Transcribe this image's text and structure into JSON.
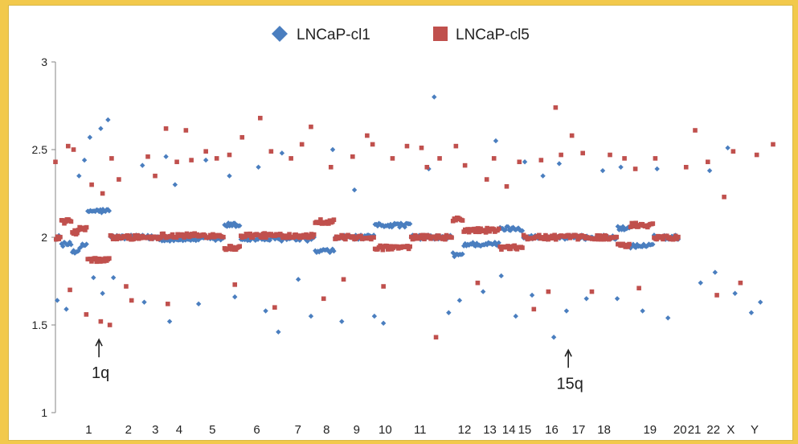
{
  "chart_data": {
    "type": "scatter",
    "title": "",
    "xlabel": "",
    "ylabel": "",
    "ylim": [
      1,
      3
    ],
    "yticks": [
      1,
      1.5,
      2,
      2.5,
      3
    ],
    "grid": false,
    "legend_position": "top-center",
    "colors": {
      "LNCaP-cl1": "#4a7ebf",
      "LNCaP-cl5": "#c0504d"
    },
    "x_tick_labels": [
      "1",
      "2",
      "3",
      "4",
      "5",
      "6",
      "7",
      "8",
      "9",
      "10",
      "11",
      "12",
      "13",
      "14",
      "15",
      "16",
      "17",
      "18",
      "19",
      "20",
      "21",
      "22",
      "X",
      "Y"
    ],
    "series": [
      {
        "name": "LNCaP-cl1",
        "marker": "diamond"
      },
      {
        "name": "LNCaP-cl5",
        "marker": "square"
      }
    ],
    "segments": [
      {
        "x": [
          0.0,
          0.3
        ],
        "cl1": 2.0,
        "cl5": 2.0
      },
      {
        "x": [
          0.3,
          0.9
        ],
        "cl1": 1.96,
        "cl5": 2.09
      },
      {
        "x": [
          0.9,
          1.3
        ],
        "cl1": 1.92,
        "cl5": 2.03
      },
      {
        "x": [
          1.3,
          1.75
        ],
        "cl1": 1.95,
        "cl5": 2.05
      },
      {
        "x": [
          1.75,
          3.0
        ],
        "cl1": 2.15,
        "cl5": 1.87
      },
      {
        "x": [
          3.0,
          5.7
        ],
        "cl1": 2.0,
        "cl5": 2.0
      },
      {
        "x": [
          5.7,
          9.3
        ],
        "cl1": 1.99,
        "cl5": 2.01
      },
      {
        "x": [
          9.3,
          10.2
        ],
        "cl1": 2.07,
        "cl5": 1.94
      },
      {
        "x": [
          10.2,
          12.3
        ],
        "cl1": 1.99,
        "cl5": 2.01
      },
      {
        "x": [
          12.3,
          14.3
        ],
        "cl1": 1.99,
        "cl5": 2.01
      },
      {
        "x": [
          14.3,
          15.4
        ],
        "cl1": 1.92,
        "cl5": 2.09
      },
      {
        "x": [
          15.4,
          17.6
        ],
        "cl1": 2.0,
        "cl5": 2.0
      },
      {
        "x": [
          17.6,
          19.6
        ],
        "cl1": 2.07,
        "cl5": 1.94
      },
      {
        "x": [
          19.6,
          21.9
        ],
        "cl1": 2.0,
        "cl5": 2.0
      },
      {
        "x": [
          21.9,
          22.5
        ],
        "cl1": 1.9,
        "cl5": 2.1
      },
      {
        "x": [
          22.5,
          24.5
        ],
        "cl1": 1.96,
        "cl5": 2.04
      },
      {
        "x": [
          24.5,
          25.8
        ],
        "cl1": 2.05,
        "cl5": 1.94
      },
      {
        "x": [
          25.8,
          31.0
        ],
        "cl1": 2.0,
        "cl5": 2.0
      },
      {
        "x": [
          31.0,
          31.7
        ],
        "cl1": 2.05,
        "cl5": 1.95
      },
      {
        "x": [
          31.7,
          33.0
        ],
        "cl1": 1.95,
        "cl5": 2.07
      },
      {
        "x": [
          33.0,
          34.4
        ],
        "cl1": 2.0,
        "cl5": 2.0
      }
    ],
    "outliers": {
      "LNCaP-cl1": [
        [
          1.3,
          2.35
        ],
        [
          1.6,
          2.44
        ],
        [
          1.9,
          2.57
        ],
        [
          2.5,
          2.62
        ],
        [
          2.9,
          2.67
        ],
        [
          0.1,
          1.64
        ],
        [
          0.6,
          1.59
        ],
        [
          2.1,
          1.77
        ],
        [
          2.6,
          1.68
        ],
        [
          3.2,
          1.77
        ],
        [
          4.8,
          2.41
        ],
        [
          4.9,
          1.63
        ],
        [
          6.1,
          2.46
        ],
        [
          6.3,
          1.52
        ],
        [
          6.6,
          2.3
        ],
        [
          7.9,
          1.62
        ],
        [
          8.3,
          2.44
        ],
        [
          9.6,
          2.35
        ],
        [
          9.9,
          1.66
        ],
        [
          11.2,
          2.4
        ],
        [
          11.6,
          1.58
        ],
        [
          12.3,
          1.46
        ],
        [
          12.5,
          2.48
        ],
        [
          13.4,
          1.76
        ],
        [
          14.1,
          1.55
        ],
        [
          15.3,
          2.5
        ],
        [
          15.8,
          1.52
        ],
        [
          16.5,
          2.27
        ],
        [
          17.6,
          1.55
        ],
        [
          18.1,
          1.51
        ],
        [
          20.6,
          2.39
        ],
        [
          20.9,
          2.8
        ],
        [
          21.7,
          1.57
        ],
        [
          22.3,
          1.64
        ],
        [
          23.6,
          1.69
        ],
        [
          24.3,
          2.55
        ],
        [
          24.6,
          1.78
        ],
        [
          25.4,
          1.55
        ],
        [
          25.9,
          2.43
        ],
        [
          26.3,
          1.67
        ],
        [
          26.9,
          2.35
        ],
        [
          27.5,
          1.43
        ],
        [
          27.8,
          2.42
        ],
        [
          28.2,
          1.58
        ],
        [
          29.3,
          1.65
        ],
        [
          30.2,
          2.38
        ],
        [
          31.0,
          1.65
        ],
        [
          31.2,
          2.4
        ],
        [
          32.4,
          1.58
        ],
        [
          33.2,
          2.39
        ],
        [
          33.8,
          1.54
        ],
        [
          35.6,
          1.74
        ],
        [
          36.1,
          2.38
        ],
        [
          36.4,
          1.8
        ],
        [
          37.1,
          2.51
        ],
        [
          37.5,
          1.68
        ],
        [
          38.4,
          1.57
        ],
        [
          38.9,
          1.63
        ]
      ],
      "LNCaP-cl5": [
        [
          0.0,
          2.43
        ],
        [
          0.7,
          2.52
        ],
        [
          1.0,
          2.5
        ],
        [
          0.8,
          1.7
        ],
        [
          1.7,
          1.56
        ],
        [
          2.0,
          2.3
        ],
        [
          2.6,
          2.25
        ],
        [
          3.1,
          2.45
        ],
        [
          3.5,
          2.33
        ],
        [
          2.5,
          1.52
        ],
        [
          3.0,
          1.5
        ],
        [
          3.9,
          1.72
        ],
        [
          4.2,
          1.64
        ],
        [
          5.1,
          2.46
        ],
        [
          5.5,
          2.35
        ],
        [
          6.1,
          2.62
        ],
        [
          6.2,
          1.62
        ],
        [
          6.7,
          2.43
        ],
        [
          7.2,
          2.61
        ],
        [
          7.5,
          2.44
        ],
        [
          8.3,
          2.49
        ],
        [
          8.9,
          2.45
        ],
        [
          9.6,
          2.47
        ],
        [
          9.9,
          1.73
        ],
        [
          10.3,
          2.57
        ],
        [
          11.3,
          2.68
        ],
        [
          11.9,
          2.49
        ],
        [
          12.1,
          1.6
        ],
        [
          13.0,
          2.45
        ],
        [
          13.6,
          2.53
        ],
        [
          14.1,
          2.63
        ],
        [
          14.8,
          1.65
        ],
        [
          15.2,
          2.4
        ],
        [
          15.9,
          1.76
        ],
        [
          16.4,
          2.46
        ],
        [
          17.2,
          2.58
        ],
        [
          17.5,
          2.53
        ],
        [
          18.1,
          1.72
        ],
        [
          18.6,
          2.45
        ],
        [
          19.4,
          2.52
        ],
        [
          20.2,
          2.51
        ],
        [
          20.5,
          2.4
        ],
        [
          21.0,
          1.43
        ],
        [
          21.2,
          2.45
        ],
        [
          22.1,
          2.52
        ],
        [
          22.6,
          2.41
        ],
        [
          23.3,
          1.74
        ],
        [
          23.8,
          2.33
        ],
        [
          24.2,
          2.45
        ],
        [
          24.9,
          2.29
        ],
        [
          25.6,
          2.43
        ],
        [
          26.4,
          1.59
        ],
        [
          26.8,
          2.44
        ],
        [
          27.2,
          1.69
        ],
        [
          27.6,
          2.74
        ],
        [
          27.9,
          2.47
        ],
        [
          28.5,
          2.58
        ],
        [
          29.1,
          2.48
        ],
        [
          29.6,
          1.69
        ],
        [
          30.6,
          2.47
        ],
        [
          31.4,
          2.45
        ],
        [
          32.0,
          2.39
        ],
        [
          32.2,
          1.71
        ],
        [
          33.1,
          2.45
        ],
        [
          34.8,
          2.4
        ],
        [
          35.3,
          2.61
        ],
        [
          36.0,
          2.43
        ],
        [
          36.5,
          1.67
        ],
        [
          36.9,
          2.23
        ],
        [
          37.4,
          2.49
        ],
        [
          37.8,
          1.74
        ],
        [
          38.7,
          2.47
        ],
        [
          39.6,
          2.53
        ]
      ]
    },
    "annotations": [
      {
        "label": "1q",
        "x": 2.4,
        "y": 1.49
      },
      {
        "label": "15q",
        "x": 28.3,
        "y": 1.43
      }
    ]
  }
}
